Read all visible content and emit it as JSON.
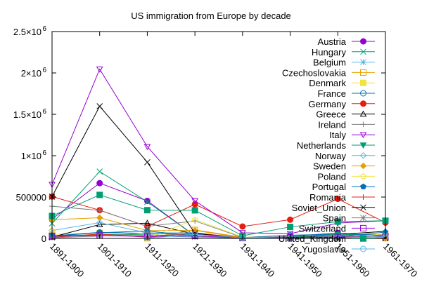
{
  "chart_data": {
    "type": "line",
    "title": "US immigration from Europe by decade",
    "xlabel": "",
    "ylabel": "",
    "categories": [
      "1891-1900",
      "1901-1910",
      "1911-1920",
      "1921-1930",
      "1931-1940",
      "1941-1950",
      "1951-1960",
      "1961-1970"
    ],
    "ylim": [
      0,
      2500000
    ],
    "yticks": [
      {
        "value": 0,
        "label": "0"
      },
      {
        "value": 500000,
        "label": "500000"
      },
      {
        "value": 1000000,
        "label": "1×10",
        "exp": "6"
      },
      {
        "value": 1500000,
        "label": "1.5×10",
        "exp": "6"
      },
      {
        "value": 2000000,
        "label": "2×10",
        "exp": "6"
      },
      {
        "value": 2500000,
        "label": "2.5×10",
        "exp": "6"
      }
    ],
    "grid": false,
    "legend_position": "top-right",
    "series": [
      {
        "name": "Austria",
        "color": "#9400d3",
        "marker": "filled-circle",
        "values": [
          234081,
          668209,
          453649,
          32868,
          3563,
          24860,
          67106,
          20621
        ]
      },
      {
        "name": "Hungary",
        "color": "#009e73",
        "marker": "x",
        "values": [
          181288,
          808511,
          442693,
          30680,
          7861,
          3469,
          36637,
          5401
        ]
      },
      {
        "name": "Belgium",
        "color": "#56b4e9",
        "marker": "star",
        "values": [
          18167,
          41635,
          33746,
          15846,
          4817,
          12189,
          18575,
          9192
        ]
      },
      {
        "name": "Czechoslovakia",
        "color": "#e69f00",
        "marker": "open-square",
        "values": [
          null,
          null,
          3426,
          102194,
          14393,
          8347,
          918,
          3273
        ]
      },
      {
        "name": "Denmark",
        "color": "#f0e442",
        "marker": "filled-square",
        "values": [
          50231,
          65285,
          41983,
          32430,
          2559,
          5393,
          10984,
          9201
        ]
      },
      {
        "name": "France",
        "color": "#0072b2",
        "marker": "open-circle",
        "values": [
          30770,
          73379,
          61897,
          49610,
          12623,
          38809,
          51121,
          45237
        ]
      },
      {
        "name": "Germany",
        "color": "#e51e10",
        "marker": "filled-circle",
        "values": [
          505152,
          341498,
          143945,
          412202,
          144058,
          226578,
          477765,
          190796
        ]
      },
      {
        "name": "Greece",
        "color": "#000000",
        "marker": "open-triangle",
        "values": [
          15979,
          167519,
          184201,
          51084,
          9119,
          8973,
          47608,
          85969
        ]
      },
      {
        "name": "Ireland",
        "color": "#808080",
        "marker": "plus",
        "values": [
          388416,
          339065,
          146181,
          211234,
          10973,
          19789,
          43362,
          32966
        ]
      },
      {
        "name": "Italy",
        "color": "#9400d3",
        "marker": "open-inverted-triangle",
        "values": [
          651893,
          2045877,
          1109524,
          455315,
          68028,
          57661,
          185491,
          214111
        ]
      },
      {
        "name": "Netherlands",
        "color": "#009e73",
        "marker": "filled-inverted-triangle",
        "values": [
          26758,
          48262,
          43718,
          26948,
          7150,
          14860,
          52277,
          30606
        ]
      },
      {
        "name": "Norway",
        "color": "#56b4e9",
        "marker": "open-diamond",
        "values": [
          95015,
          190505,
          66395,
          68531,
          4740,
          10100,
          22935,
          15484
        ]
      },
      {
        "name": "Sweden",
        "color": "#e69f00",
        "marker": "filled-diamond",
        "values": [
          226266,
          249534,
          95074,
          97249,
          3960,
          10665,
          21697,
          17116
        ]
      },
      {
        "name": "Poland",
        "color": "#f0e442",
        "marker": "open-pentagon",
        "values": [
          96720,
          null,
          4813,
          227734,
          17026,
          7571,
          9985,
          53539
        ]
      },
      {
        "name": "Portugal",
        "color": "#0072b2",
        "marker": "filled-pentagon",
        "values": [
          27508,
          69149,
          89732,
          29994,
          3329,
          7423,
          19588,
          76065
        ]
      },
      {
        "name": "Romania",
        "color": "#e51e10",
        "marker": "plus",
        "values": [
          12750,
          53008,
          13311,
          67646,
          3871,
          1076,
          1039,
          3531
        ]
      },
      {
        "name": "Soviet_Union",
        "color": "#000000",
        "marker": "x",
        "values": [
          505290,
          1597306,
          921201,
          61742,
          1370,
          571,
          671,
          2465
        ]
      },
      {
        "name": "Spain",
        "color": "#808080",
        "marker": "star",
        "values": [
          8731,
          27935,
          68611,
          28958,
          3258,
          2898,
          7894,
          44659
        ]
      },
      {
        "name": "Switzerland",
        "color": "#9400d3",
        "marker": "open-square",
        "values": [
          31179,
          34922,
          23091,
          29676,
          5512,
          10547,
          17675,
          18453
        ]
      },
      {
        "name": "United_Kingdom",
        "color": "#009e73",
        "marker": "filled-square",
        "values": [
          271538,
          525950,
          341408,
          339570,
          31572,
          139306,
          202824,
          213822
        ]
      },
      {
        "name": "Yugoslavia",
        "color": "#56b4e9",
        "marker": "open-circle",
        "values": [
          null,
          null,
          1888,
          49064,
          5835,
          1576,
          8225,
          20381
        ]
      }
    ]
  }
}
